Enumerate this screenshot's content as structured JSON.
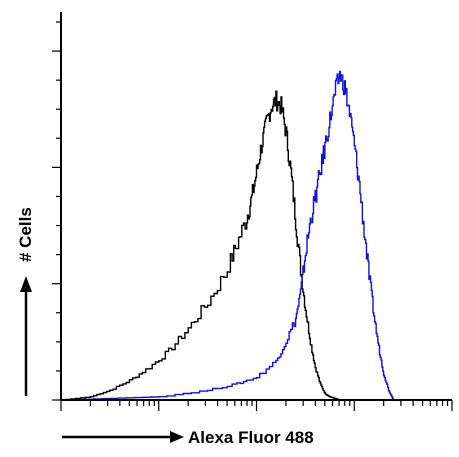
{
  "chart_data": {
    "type": "line",
    "title": "",
    "xlabel": "Alexa Fluor 488",
    "ylabel": "# Cells",
    "x_scale": "log",
    "xlim": [
      1,
      10000
    ],
    "ylim": [
      0,
      100
    ],
    "grid": false,
    "legend": "none",
    "series": [
      {
        "color": "#000000",
        "x": [
          1,
          2,
          3.16,
          5.01,
          7.94,
          12.6,
          20,
          31.6,
          50.1,
          63.1,
          79.4,
          89.1,
          100,
          112,
          126,
          141,
          158,
          178,
          200,
          224,
          251,
          282,
          316,
          355,
          398,
          447,
          501,
          562,
          631,
          708
        ],
        "y": [
          0,
          1,
          3,
          6,
          10,
          15,
          22,
          30,
          40,
          48,
          56,
          62,
          70,
          78,
          85,
          90,
          92,
          90,
          82,
          70,
          55,
          40,
          28,
          18,
          10,
          5,
          2,
          1,
          0.5,
          0
        ]
      },
      {
        "color": "#1010e0",
        "x": [
          1,
          3.16,
          10,
          31.6,
          63.1,
          100,
          158,
          200,
          251,
          282,
          316,
          355,
          398,
          447,
          501,
          562,
          631,
          708,
          794,
          891,
          1000,
          1122,
          1259,
          1413,
          1585,
          1778,
          1995,
          2239,
          2512
        ],
        "y": [
          0,
          0.5,
          1,
          3,
          5,
          7,
          12,
          18,
          25,
          33,
          45,
          55,
          62,
          70,
          78,
          86,
          94,
          100,
          96,
          88,
          78,
          66,
          52,
          38,
          26,
          16,
          8,
          3,
          0
        ]
      }
    ]
  }
}
